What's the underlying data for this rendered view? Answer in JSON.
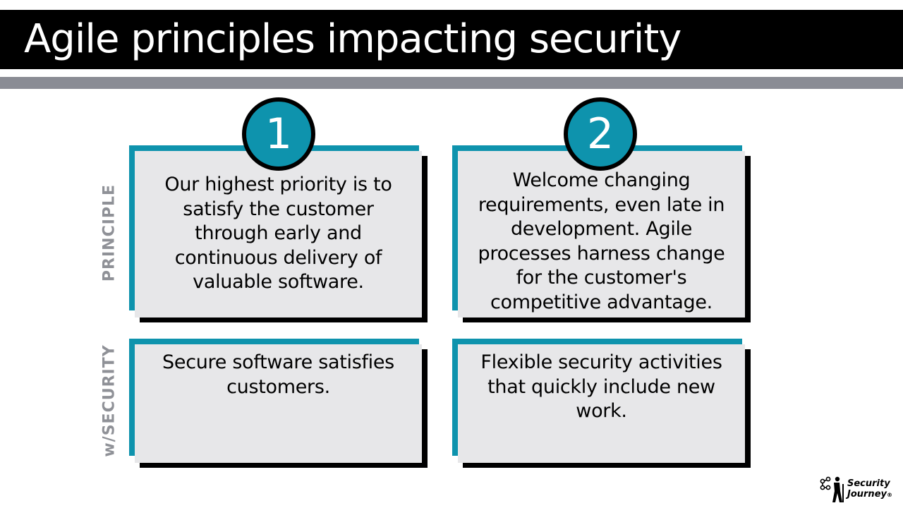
{
  "slide": {
    "title": "Agile principles impacting security",
    "row_labels": {
      "principle": "PRINCIPLE",
      "security": "w/SECURITY"
    },
    "columns": [
      {
        "number": "1",
        "principle": "Our highest priority is to satisfy the customer through early and continuous delivery of valuable software.",
        "security": "Secure software satisfies customers."
      },
      {
        "number": "2",
        "principle": "Welcome changing requirements, even late in development. Agile processes harness change for the customer's competitive advantage.",
        "security": "Flexible security activities that quickly include new work."
      }
    ],
    "logo": {
      "line1": "Security",
      "line2": "Journey",
      "mark": "®"
    }
  },
  "colors": {
    "accent_teal": "#0e93ad",
    "title_bar": "#000000",
    "band_gray": "#8a8c94",
    "card_face": "#e7e7e9",
    "label_gray": "#8f9197"
  }
}
